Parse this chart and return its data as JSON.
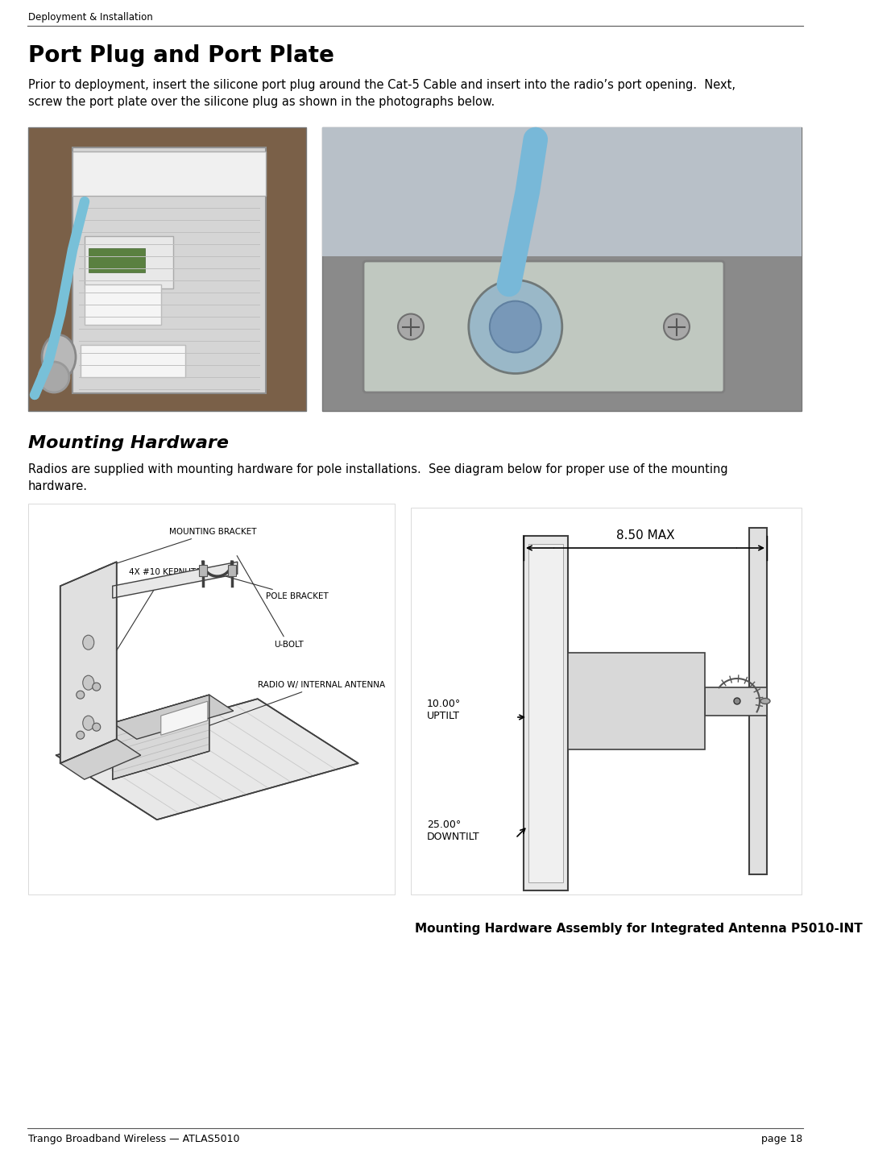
{
  "page_bg": "#ffffff",
  "header_text": "Deployment & Installation",
  "footer_left": "Trango Broadband Wireless — ATLAS5010",
  "footer_right": "page 18",
  "section1_title": "Port Plug and Port Plate",
  "section1_body": "Prior to deployment, insert the silicone port plug around the Cat-5 Cable and insert into the radio’s port opening.  Next,\nscrew the port plate over the silicone plug as shown in the photographs below.",
  "section2_title": "Mounting Hardware",
  "section2_body": "Radios are supplied with mounting hardware for pole installations.  See diagram below for proper use of the mounting\nhardware.",
  "caption": "Mounting Hardware Assembly for Integrated Antenna P5010-INT",
  "label_mounting_bracket": "MOUNTING BRACKET",
  "label_kepnuts": "4X #10 KEPNUTS",
  "label_pole_bracket": "POLE BRACKET",
  "label_ubolt": "U-BOLT",
  "label_radio": "RADIO W/ INTERNAL ANTENNA",
  "dim_label": "8.50 MAX",
  "uptilt_label": "10.00°\nUPTILT",
  "downtilt_label": "25.00°\nDOWNTILT"
}
